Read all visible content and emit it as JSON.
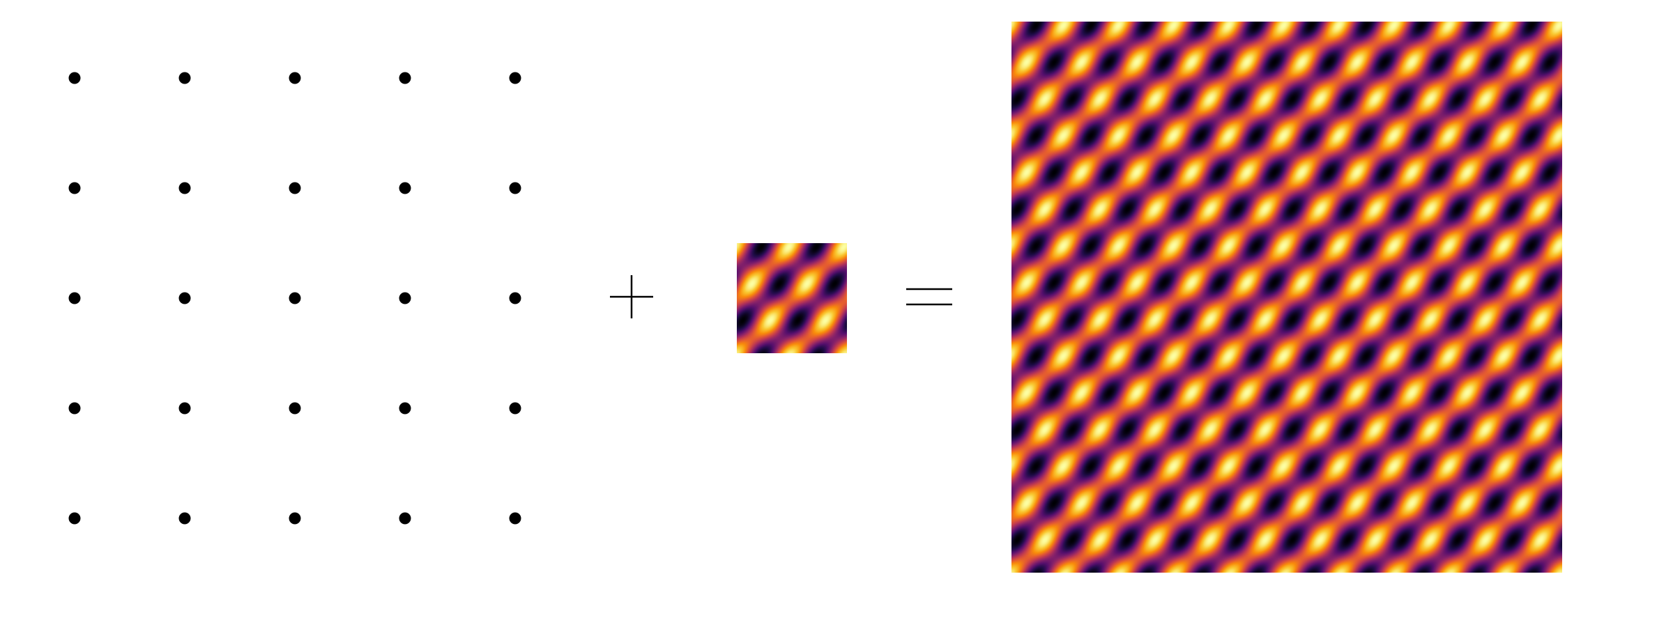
{
  "diagram": {
    "lattice": {
      "rows": 5,
      "columns": 5,
      "point_color": "#000000"
    },
    "operators": {
      "plus_symbol": "+",
      "equals_symbol": "="
    },
    "motif": {
      "colormap": "inferno",
      "cells": 1
    },
    "crystal": {
      "colormap": "inferno",
      "cells": 5
    }
  }
}
